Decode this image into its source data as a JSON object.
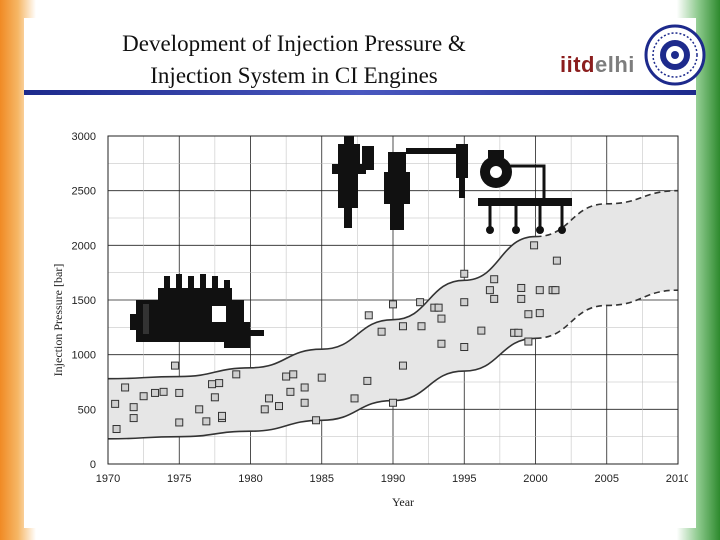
{
  "slide": {
    "title_line1": "Development of Injection Pressure &",
    "title_line2": "Injection System in CI Engines",
    "logo_iitd": "iitd",
    "logo_elhi": "elhi",
    "seal_icon": "institute-seal-icon",
    "accent_color": "#1d2a8c"
  },
  "chart_data": {
    "type": "scatter",
    "title": "",
    "xlabel": "Year",
    "ylabel": "Injection Pressure [bar]",
    "xlim": [
      1970,
      2010
    ],
    "ylim": [
      0,
      3000
    ],
    "xticks": [
      1970,
      1975,
      1980,
      1985,
      1990,
      1995,
      2000,
      2005,
      2010
    ],
    "yticks": [
      0,
      500,
      1000,
      1500,
      2000,
      2500,
      3000
    ],
    "grid": true,
    "band": {
      "x": [
        1970,
        1975,
        1980,
        1985,
        1990,
        1995,
        2000,
        2005,
        2010
      ],
      "lower": [
        230,
        250,
        300,
        400,
        580,
        850,
        1150,
        1450,
        1590
      ],
      "upper": [
        780,
        800,
        880,
        1050,
        1320,
        1680,
        2080,
        2380,
        2500
      ],
      "solid_until": 2000
    },
    "points": [
      [
        1970.5,
        550
      ],
      [
        1970.6,
        320
      ],
      [
        1971.2,
        700
      ],
      [
        1971.8,
        420
      ],
      [
        1971.8,
        520
      ],
      [
        1972.5,
        620
      ],
      [
        1973.3,
        650
      ],
      [
        1973.9,
        660
      ],
      [
        1974.7,
        900
      ],
      [
        1975.0,
        380
      ],
      [
        1975.0,
        650
      ],
      [
        1976.4,
        500
      ],
      [
        1976.9,
        390
      ],
      [
        1977.3,
        730
      ],
      [
        1977.5,
        610
      ],
      [
        1977.8,
        740
      ],
      [
        1978.0,
        420
      ],
      [
        1978.0,
        440
      ],
      [
        1979.0,
        820
      ],
      [
        1981.0,
        500
      ],
      [
        1981.3,
        600
      ],
      [
        1982.5,
        800
      ],
      [
        1983.0,
        820
      ],
      [
        1983.8,
        700
      ],
      [
        1982.8,
        660
      ],
      [
        1982.0,
        530
      ],
      [
        1983.8,
        560
      ],
      [
        1984.6,
        400
      ],
      [
        1985.0,
        790
      ],
      [
        1987.3,
        600
      ],
      [
        1988.2,
        760
      ],
      [
        1988.3,
        1360
      ],
      [
        1989.2,
        1210
      ],
      [
        1990.0,
        560
      ],
      [
        1990.0,
        1460
      ],
      [
        1990.7,
        1260
      ],
      [
        1990.7,
        900
      ],
      [
        1991.9,
        1480
      ],
      [
        1992.0,
        1260
      ],
      [
        1992.9,
        1430
      ],
      [
        1993.2,
        1430
      ],
      [
        1993.4,
        1330
      ],
      [
        1993.4,
        1100
      ],
      [
        1995.0,
        1480
      ],
      [
        1995.0,
        1740
      ],
      [
        1995.0,
        1070
      ],
      [
        1996.2,
        1220
      ],
      [
        1996.8,
        1590
      ],
      [
        1997.1,
        1690
      ],
      [
        1997.1,
        1510
      ],
      [
        1998.5,
        1200
      ],
      [
        1998.8,
        1200
      ],
      [
        1999.0,
        1610
      ],
      [
        1999.0,
        1510
      ],
      [
        1999.5,
        1120
      ],
      [
        1999.5,
        1370
      ],
      [
        1999.9,
        2000
      ],
      [
        2000.3,
        1590
      ],
      [
        2000.3,
        1380
      ],
      [
        2001.2,
        1590
      ],
      [
        2001.4,
        1590
      ],
      [
        2001.5,
        1860
      ]
    ],
    "illustrations": [
      "inline-pump-icon",
      "injector-icon",
      "common-rail-icon"
    ]
  }
}
